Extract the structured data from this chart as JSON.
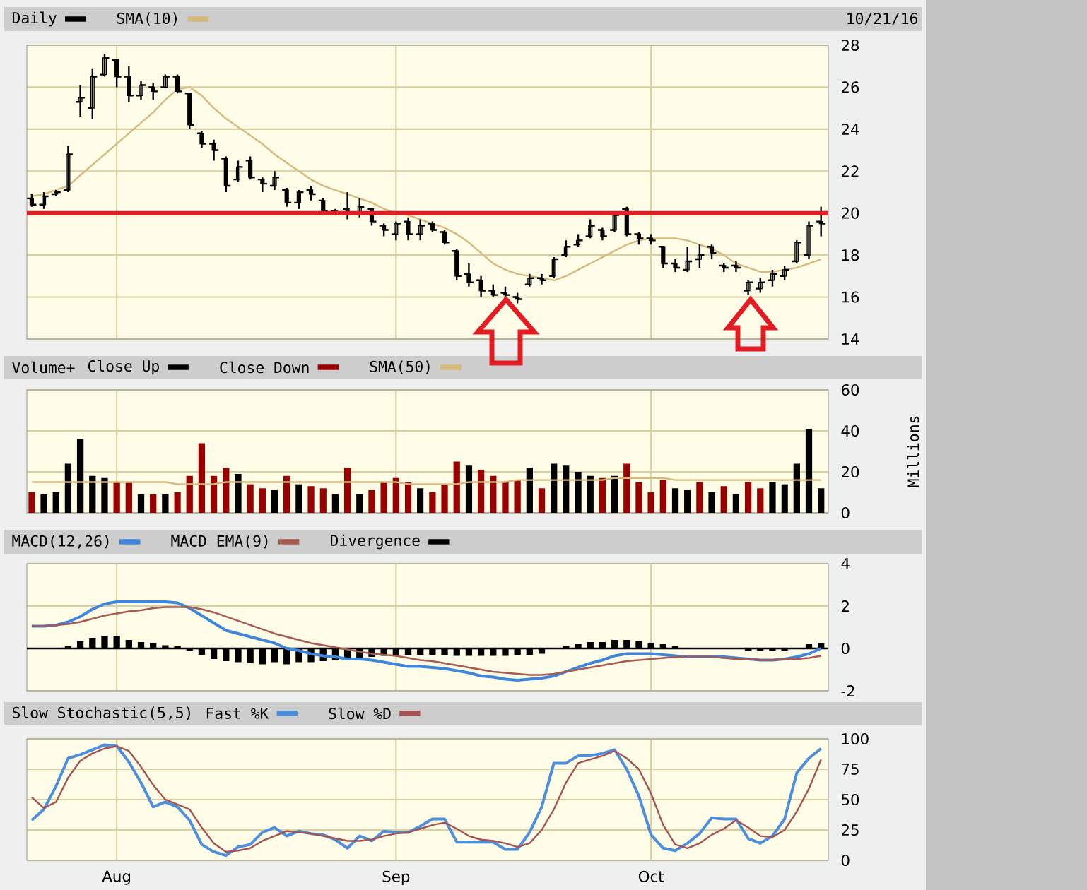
{
  "chart_data": [
    {
      "type": "candlestick",
      "categories": [
        null,
        null,
        null,
        null,
        null,
        null,
        null,
        null,
        null,
        null,
        null,
        null,
        null,
        null,
        null,
        null,
        null,
        null,
        null,
        null,
        null,
        null,
        null,
        null,
        null,
        null,
        null,
        null,
        null,
        null,
        null,
        null,
        null,
        null,
        null,
        null,
        null,
        null,
        null,
        null,
        null,
        null,
        null,
        null,
        null,
        null,
        null,
        null,
        null,
        null,
        null,
        null,
        null,
        null,
        null,
        null,
        null,
        null,
        null,
        null,
        null,
        null,
        null,
        null,
        null,
        null
      ],
      "series": [
        {
          "name": "Daily",
          "type": "candlestick",
          "color": "#000000",
          "ohlc": [
            [
              20.7,
              20.9,
              20.3,
              20.4
            ],
            [
              20.4,
              21.0,
              20.2,
              20.8
            ],
            [
              20.9,
              21.1,
              20.8,
              21.0
            ],
            [
              21.1,
              23.2,
              21.0,
              22.8
            ],
            [
              25.3,
              26.1,
              24.6,
              25.5
            ],
            [
              25.0,
              26.9,
              24.5,
              26.5
            ],
            [
              26.6,
              27.6,
              26.5,
              27.4
            ],
            [
              27.3,
              27.3,
              26.0,
              26.5
            ],
            [
              26.5,
              27.0,
              25.3,
              25.6
            ],
            [
              25.6,
              26.3,
              25.4,
              26.1
            ],
            [
              26.0,
              26.2,
              25.4,
              25.8
            ],
            [
              26.0,
              26.6,
              26.0,
              26.5
            ],
            [
              26.5,
              26.6,
              25.7,
              25.8
            ],
            [
              25.7,
              25.7,
              24.0,
              24.2
            ],
            [
              23.8,
              23.9,
              23.1,
              23.3
            ],
            [
              23.3,
              23.5,
              22.5,
              23.0
            ],
            [
              22.6,
              22.7,
              21.0,
              21.3
            ],
            [
              21.6,
              22.5,
              21.5,
              22.2
            ],
            [
              22.5,
              22.7,
              21.6,
              21.7
            ],
            [
              21.6,
              21.7,
              21.0,
              21.4
            ],
            [
              21.3,
              22.0,
              21.1,
              21.7
            ],
            [
              21.1,
              21.2,
              20.3,
              20.5
            ],
            [
              20.5,
              21.1,
              20.2,
              21.0
            ],
            [
              21.1,
              21.3,
              20.6,
              20.9
            ],
            [
              20.6,
              20.7,
              19.9,
              20.1
            ],
            [
              20.1,
              20.2,
              19.9,
              20.0
            ],
            [
              20.2,
              21.0,
              19.7,
              20.0
            ],
            [
              20.0,
              20.7,
              19.8,
              20.3
            ],
            [
              20.2,
              20.2,
              19.4,
              19.6
            ],
            [
              19.4,
              19.5,
              18.9,
              19.2
            ],
            [
              19.0,
              19.6,
              18.7,
              19.5
            ],
            [
              19.6,
              19.8,
              18.7,
              19.0
            ],
            [
              19.0,
              19.7,
              18.7,
              19.4
            ],
            [
              19.5,
              19.6,
              19.1,
              19.2
            ],
            [
              19.1,
              19.2,
              18.5,
              18.6
            ],
            [
              18.2,
              18.3,
              16.8,
              17.0
            ],
            [
              17.1,
              17.6,
              16.5,
              16.7
            ],
            [
              16.8,
              17.0,
              16.0,
              16.3
            ],
            [
              16.3,
              16.6,
              16.0,
              16.1
            ],
            [
              16.2,
              16.5,
              15.9,
              16.1
            ],
            [
              16.0,
              16.2,
              15.7,
              15.9
            ],
            [
              16.6,
              17.1,
              16.5,
              16.9
            ],
            [
              16.9,
              17.1,
              16.6,
              16.8
            ],
            [
              17.0,
              17.9,
              16.9,
              17.8
            ],
            [
              18.0,
              18.7,
              17.9,
              18.4
            ],
            [
              18.5,
              19.0,
              18.4,
              18.7
            ],
            [
              18.9,
              19.7,
              18.8,
              19.4
            ],
            [
              19.2,
              19.3,
              18.7,
              18.9
            ],
            [
              19.2,
              20.0,
              19.1,
              19.9
            ],
            [
              20.2,
              20.3,
              18.9,
              19.0
            ],
            [
              19.0,
              19.1,
              18.5,
              18.8
            ],
            [
              18.8,
              19.0,
              18.5,
              18.7
            ],
            [
              18.4,
              18.4,
              17.4,
              17.6
            ],
            [
              17.6,
              17.8,
              17.2,
              17.4
            ],
            [
              17.3,
              18.4,
              17.2,
              17.7
            ],
            [
              17.8,
              18.5,
              17.4,
              18.0
            ],
            [
              18.4,
              18.5,
              17.8,
              18.1
            ],
            [
              17.5,
              17.6,
              17.2,
              17.4
            ],
            [
              17.5,
              17.7,
              17.2,
              17.4
            ],
            [
              16.3,
              16.8,
              16.1,
              16.7
            ],
            [
              16.4,
              16.9,
              16.2,
              16.7
            ],
            [
              16.8,
              17.3,
              16.5,
              17.1
            ],
            [
              17.0,
              17.5,
              16.8,
              17.3
            ],
            [
              17.7,
              18.7,
              17.6,
              18.6
            ],
            [
              18.0,
              19.6,
              17.8,
              19.4
            ],
            [
              19.6,
              20.3,
              18.9,
              19.5
            ]
          ]
        },
        {
          "name": "SMA(10)",
          "type": "line",
          "color": "#d6b97c",
          "values": [
            20.8,
            20.9,
            21.1,
            21.3,
            21.8,
            22.3,
            22.8,
            23.3,
            23.8,
            24.3,
            24.8,
            25.4,
            25.9,
            26.0,
            25.6,
            25.0,
            24.5,
            24.1,
            23.7,
            23.3,
            22.8,
            22.4,
            22.0,
            21.6,
            21.3,
            21.1,
            20.9,
            20.7,
            20.5,
            20.2,
            20.0,
            19.9,
            19.7,
            19.5,
            19.3,
            19.0,
            18.6,
            18.1,
            17.6,
            17.3,
            17.1,
            17.0,
            16.9,
            16.8,
            17.0,
            17.3,
            17.6,
            17.9,
            18.2,
            18.5,
            18.7,
            18.8,
            18.8,
            18.8,
            18.7,
            18.5,
            18.3,
            18.0,
            17.6,
            17.4,
            17.2,
            17.2,
            17.3,
            17.4,
            17.6,
            17.8
          ]
        }
      ],
      "ylim": [
        14,
        28
      ],
      "yticks": [
        14,
        16,
        18,
        20,
        22,
        24,
        26,
        28
      ],
      "grid": true,
      "legend": "top left",
      "tick_labels": "y",
      "ref_lines": [
        {
          "axis": "y",
          "value": 20,
          "color": "#e31b23"
        }
      ],
      "annotations": [
        "10/21/16"
      ]
    },
    {
      "type": "bar",
      "title": "Volume+",
      "categories": [
        null,
        null,
        null,
        null,
        null,
        null,
        null,
        null,
        null,
        null,
        null,
        null,
        null,
        null,
        null,
        null,
        null,
        null,
        null,
        null,
        null,
        null,
        null,
        null,
        null,
        null,
        null,
        null,
        null,
        null,
        null,
        null,
        null,
        null,
        null,
        null,
        null,
        null,
        null,
        null,
        null,
        null,
        null,
        null,
        null,
        null,
        null,
        null,
        null,
        null,
        null,
        null,
        null,
        null,
        null,
        null,
        null,
        null,
        null,
        null,
        null,
        null,
        null,
        null,
        null,
        null
      ],
      "series": [
        {
          "name": "Close Up",
          "color": "#000000",
          "values": [
            null,
            9,
            10,
            24,
            36,
            18,
            17,
            null,
            null,
            9,
            null,
            9,
            null,
            null,
            null,
            null,
            null,
            19,
            null,
            null,
            11,
            null,
            14,
            null,
            null,
            9,
            null,
            9,
            null,
            null,
            null,
            null,
            12,
            null,
            null,
            null,
            23,
            null,
            null,
            null,
            null,
            22,
            null,
            24,
            23,
            20,
            18,
            null,
            18,
            null,
            null,
            null,
            null,
            12,
            11,
            null,
            10,
            null,
            9,
            null,
            null,
            15,
            14,
            24,
            41,
            12
          ]
        },
        {
          "name": "Close Down",
          "color": "#990000",
          "values": [
            10,
            null,
            null,
            null,
            null,
            null,
            null,
            15,
            15,
            null,
            9,
            null,
            10,
            18,
            34,
            18,
            22,
            null,
            14,
            12,
            null,
            18,
            null,
            13,
            12,
            null,
            22,
            null,
            11,
            15,
            17,
            15,
            null,
            10,
            14,
            25,
            null,
            21,
            18,
            15,
            16,
            null,
            12,
            null,
            null,
            null,
            null,
            17,
            null,
            24,
            15,
            10,
            16,
            null,
            null,
            15,
            null,
            13,
            null,
            15,
            12,
            null,
            null,
            null,
            null,
            null
          ]
        },
        {
          "name": "SMA(50)",
          "type": "line",
          "color": "#d6b97c",
          "values": [
            15,
            15,
            15,
            15,
            15,
            15,
            15,
            15,
            15,
            15,
            15,
            15,
            14,
            14,
            14,
            14,
            15,
            15,
            15,
            15,
            15,
            15,
            15,
            15,
            15,
            15,
            15,
            15,
            15,
            15,
            15,
            14,
            14,
            14,
            14,
            14,
            15,
            15,
            15,
            15,
            16,
            16,
            16,
            16,
            16,
            16,
            16,
            16,
            17,
            17,
            17,
            17,
            17,
            16,
            16,
            16,
            16,
            16,
            16,
            16,
            16,
            16,
            16,
            16,
            16,
            16
          ]
        }
      ],
      "ylim": [
        0,
        60
      ],
      "yticks": [
        0,
        20,
        40,
        60
      ],
      "ylabel": "Millions",
      "grid": true,
      "legend": "top left",
      "tick_labels": "y"
    },
    {
      "type": "line",
      "categories": [
        null,
        null,
        null,
        null,
        null,
        null,
        null,
        null,
        null,
        null,
        null,
        null,
        null,
        null,
        null,
        null,
        null,
        null,
        null,
        null,
        null,
        null,
        null,
        null,
        null,
        null,
        null,
        null,
        null,
        null,
        null,
        null,
        null,
        null,
        null,
        null,
        null,
        null,
        null,
        null,
        null,
        null,
        null,
        null,
        null,
        null,
        null,
        null,
        null,
        null,
        null,
        null,
        null,
        null,
        null,
        null,
        null,
        null,
        null,
        null,
        null,
        null,
        null,
        null,
        null,
        null
      ],
      "series": [
        {
          "name": "MACD(12,26)",
          "color": "#3d86dc",
          "values": [
            1.05,
            1.05,
            1.1,
            1.25,
            1.5,
            1.85,
            2.1,
            2.2,
            2.2,
            2.2,
            2.2,
            2.2,
            2.15,
            1.9,
            1.55,
            1.2,
            0.85,
            0.7,
            0.55,
            0.4,
            0.25,
            0.0,
            -0.1,
            -0.25,
            -0.35,
            -0.4,
            -0.5,
            -0.5,
            -0.55,
            -0.65,
            -0.75,
            -0.85,
            -0.85,
            -0.9,
            -0.95,
            -1.05,
            -1.15,
            -1.3,
            -1.35,
            -1.45,
            -1.5,
            -1.45,
            -1.4,
            -1.3,
            -1.1,
            -0.9,
            -0.7,
            -0.55,
            -0.35,
            -0.25,
            -0.25,
            -0.25,
            -0.3,
            -0.35,
            -0.4,
            -0.4,
            -0.4,
            -0.4,
            -0.45,
            -0.5,
            -0.55,
            -0.55,
            -0.5,
            -0.4,
            -0.25,
            0.0
          ]
        },
        {
          "name": "MACD EMA(9)",
          "color": "#a85a50",
          "values": [
            1.05,
            1.05,
            1.1,
            1.15,
            1.25,
            1.4,
            1.55,
            1.65,
            1.75,
            1.8,
            1.9,
            1.95,
            1.95,
            1.95,
            1.85,
            1.7,
            1.5,
            1.3,
            1.1,
            0.9,
            0.7,
            0.55,
            0.4,
            0.25,
            0.15,
            0.05,
            -0.05,
            -0.15,
            -0.25,
            -0.3,
            -0.35,
            -0.45,
            -0.55,
            -0.6,
            -0.7,
            -0.8,
            -0.9,
            -1.0,
            -1.1,
            -1.15,
            -1.2,
            -1.25,
            -1.25,
            -1.2,
            -1.1,
            -1.0,
            -0.9,
            -0.8,
            -0.7,
            -0.6,
            -0.55,
            -0.5,
            -0.45,
            -0.4,
            -0.4,
            -0.4,
            -0.4,
            -0.45,
            -0.5,
            -0.5,
            -0.55,
            -0.55,
            -0.5,
            -0.5,
            -0.45,
            -0.35
          ]
        },
        {
          "name": "Divergence",
          "type": "bar",
          "color": "#000000",
          "values": [
            null,
            null,
            null,
            0.1,
            0.35,
            0.5,
            0.6,
            0.6,
            0.4,
            0.3,
            0.25,
            0.15,
            0.1,
            -0.1,
            -0.3,
            -0.5,
            -0.6,
            -0.65,
            -0.7,
            -0.75,
            -0.65,
            -0.75,
            -0.65,
            -0.65,
            -0.6,
            -0.55,
            -0.5,
            -0.45,
            -0.4,
            -0.35,
            -0.35,
            -0.3,
            -0.3,
            -0.3,
            -0.3,
            -0.35,
            -0.35,
            -0.35,
            -0.35,
            -0.35,
            -0.3,
            -0.3,
            -0.25,
            null,
            0.1,
            0.2,
            0.3,
            0.3,
            0.4,
            0.4,
            0.35,
            0.25,
            0.2,
            0.1,
            null,
            null,
            null,
            null,
            null,
            -0.1,
            -0.1,
            -0.1,
            -0.1,
            null,
            0.2,
            0.25
          ]
        }
      ],
      "ylim": [
        -2,
        4
      ],
      "yticks": [
        -2,
        0,
        2,
        4
      ],
      "grid": true,
      "legend": "top left",
      "tick_labels": "y"
    },
    {
      "type": "line",
      "title": "Slow Stochastic(5,5)",
      "categories": [
        null,
        null,
        null,
        null,
        null,
        null,
        null,
        "Aug",
        null,
        null,
        null,
        null,
        null,
        null,
        null,
        null,
        null,
        null,
        null,
        null,
        null,
        null,
        null,
        null,
        null,
        null,
        null,
        null,
        null,
        null,
        "Sep",
        null,
        null,
        null,
        null,
        null,
        null,
        null,
        null,
        null,
        null,
        null,
        null,
        null,
        null,
        null,
        null,
        null,
        null,
        null,
        null,
        "Oct",
        null,
        null,
        null,
        null,
        null,
        null,
        null,
        null,
        null,
        null,
        null,
        null,
        null,
        null
      ],
      "series": [
        {
          "name": "Fast %K",
          "color": "#4d8fdc",
          "values": [
            33,
            42,
            61,
            84,
            87,
            91,
            95,
            94,
            81,
            64,
            44,
            48,
            44,
            33,
            13,
            7,
            4,
            11,
            13,
            23,
            27,
            20,
            24,
            22,
            21,
            17,
            10,
            20,
            16,
            24,
            23,
            23,
            28,
            34,
            34,
            15,
            15,
            15,
            15,
            9,
            9,
            23,
            44,
            80,
            80,
            86,
            86,
            88,
            91,
            75,
            53,
            21,
            10,
            8,
            14,
            22,
            35,
            34,
            34,
            18,
            14,
            20,
            34,
            72,
            84,
            92
          ]
        },
        {
          "name": "Slow %D",
          "color": "#a65252",
          "values": [
            52,
            43,
            48,
            68,
            82,
            88,
            92,
            94,
            90,
            77,
            62,
            50,
            46,
            42,
            27,
            14,
            7,
            8,
            10,
            16,
            20,
            24,
            23,
            22,
            20,
            18,
            16,
            16,
            17,
            20,
            22,
            23,
            26,
            29,
            31,
            26,
            20,
            17,
            16,
            14,
            11,
            14,
            25,
            42,
            64,
            80,
            83,
            86,
            90,
            84,
            75,
            55,
            29,
            13,
            10,
            14,
            21,
            26,
            33,
            27,
            20,
            19,
            25,
            40,
            59,
            83
          ]
        }
      ],
      "ylim": [
        0,
        100
      ],
      "yticks": [
        0,
        25,
        50,
        75,
        100
      ],
      "grid": true,
      "legend": "top left"
    }
  ]
}
